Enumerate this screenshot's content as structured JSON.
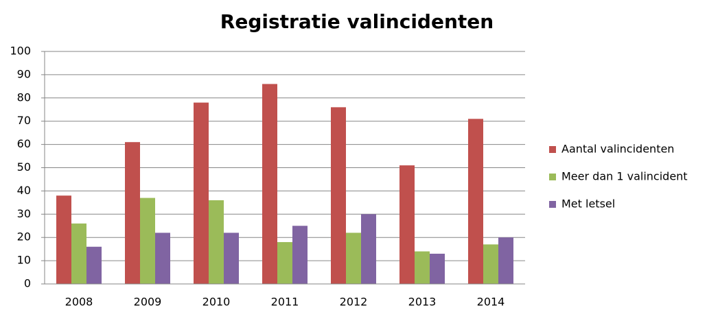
{
  "chart_data": {
    "type": "bar",
    "title": "Registratie valincidenten",
    "categories": [
      "2008",
      "2009",
      "2010",
      "2011",
      "2012",
      "2013",
      "2014"
    ],
    "series": [
      {
        "name": "Aantal valincidenten",
        "color": "#c0504d",
        "values": [
          38,
          61,
          78,
          86,
          76,
          51,
          71
        ]
      },
      {
        "name": "Meer dan 1 valincident",
        "color": "#9bbb59",
        "values": [
          26,
          37,
          36,
          18,
          22,
          14,
          17
        ]
      },
      {
        "name": "Met letsel",
        "color": "#8064a2",
        "values": [
          16,
          22,
          22,
          25,
          30,
          13,
          20
        ]
      }
    ],
    "ylim": [
      0,
      100
    ],
    "yticks": [
      0,
      10,
      20,
      30,
      40,
      50,
      60,
      70,
      80,
      90,
      100
    ],
    "grid": true,
    "legend": "right"
  }
}
